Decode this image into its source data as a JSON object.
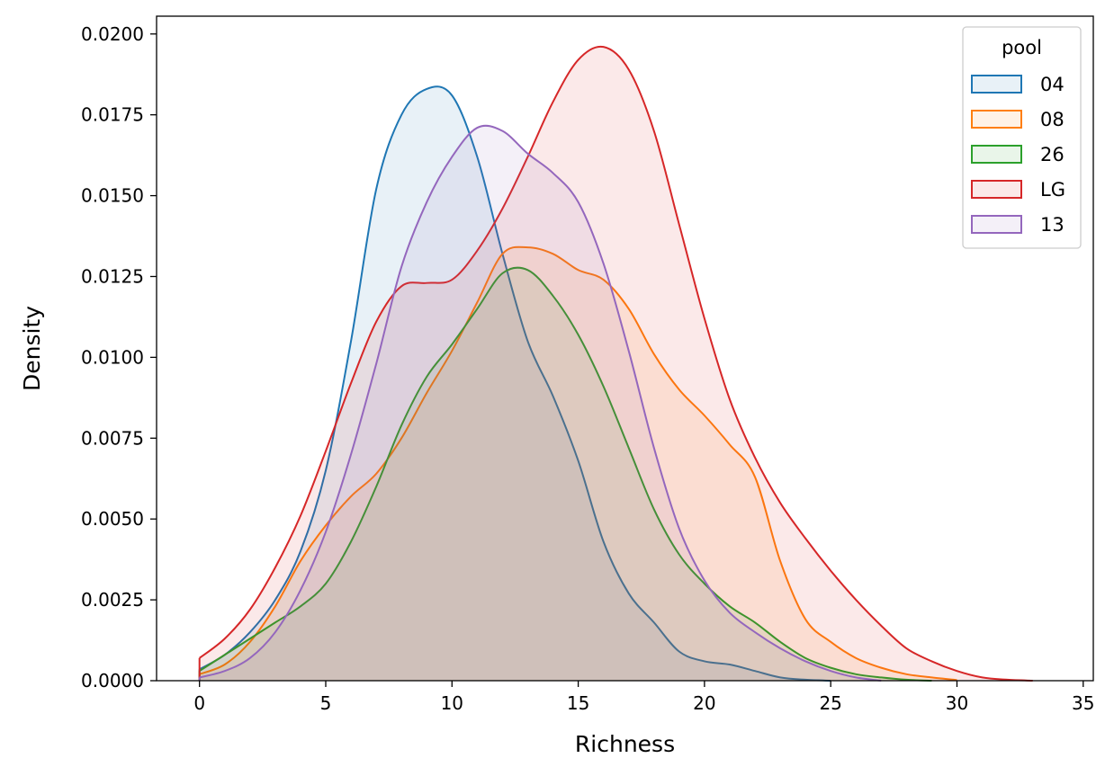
{
  "chart_data": {
    "type": "area",
    "subtype": "kde",
    "title": "",
    "xlabel": "Richness",
    "ylabel": "Density",
    "xlim": [
      -1.7,
      35.4
    ],
    "ylim": [
      0,
      0.02055
    ],
    "x_ticks": [
      0,
      5,
      10,
      15,
      20,
      25,
      30,
      35
    ],
    "y_ticks": [
      0.0,
      0.0025,
      0.005,
      0.0075,
      0.01,
      0.0125,
      0.015,
      0.0175,
      0.02
    ],
    "y_tick_labels": [
      "0.0000",
      "0.0025",
      "0.0050",
      "0.0075",
      "0.0100",
      "0.0125",
      "0.0150",
      "0.0175",
      "0.0200"
    ],
    "grid": false,
    "legend": {
      "title": "pool",
      "placement": "top-right"
    },
    "series": [
      {
        "name": "04",
        "color": "#1f77b4",
        "points": [
          [
            0,
            0.00035
          ],
          [
            1,
            0.0008
          ],
          [
            2,
            0.0015
          ],
          [
            3,
            0.0025
          ],
          [
            4,
            0.004
          ],
          [
            5,
            0.0065
          ],
          [
            6,
            0.0105
          ],
          [
            7,
            0.0152
          ],
          [
            8,
            0.0175
          ],
          [
            9,
            0.0183
          ],
          [
            10,
            0.0181
          ],
          [
            11,
            0.0162
          ],
          [
            12,
            0.0132
          ],
          [
            13,
            0.0105
          ],
          [
            14,
            0.0088
          ],
          [
            15,
            0.0068
          ],
          [
            16,
            0.0043
          ],
          [
            17,
            0.0027
          ],
          [
            18,
            0.0018
          ],
          [
            19,
            0.0009
          ],
          [
            20,
            0.0006
          ],
          [
            21,
            0.0005
          ],
          [
            22,
            0.0003
          ],
          [
            23,
            0.0001
          ],
          [
            24,
            3e-05
          ],
          [
            25,
            0.0
          ]
        ]
      },
      {
        "name": "08",
        "color": "#ff7f0e",
        "points": [
          [
            0,
            0.0002
          ],
          [
            1,
            0.0005
          ],
          [
            2,
            0.0012
          ],
          [
            3,
            0.0023
          ],
          [
            4,
            0.0037
          ],
          [
            5,
            0.0048
          ],
          [
            6,
            0.0057
          ],
          [
            7,
            0.0064
          ],
          [
            8,
            0.0075
          ],
          [
            9,
            0.0089
          ],
          [
            10,
            0.0102
          ],
          [
            11,
            0.0117
          ],
          [
            12,
            0.0132
          ],
          [
            13,
            0.0134
          ],
          [
            14,
            0.0132
          ],
          [
            15,
            0.0127
          ],
          [
            16,
            0.0124
          ],
          [
            17,
            0.0115
          ],
          [
            18,
            0.0101
          ],
          [
            19,
            0.009
          ],
          [
            20,
            0.0082
          ],
          [
            21,
            0.0073
          ],
          [
            22,
            0.0063
          ],
          [
            23,
            0.0037
          ],
          [
            24,
            0.0019
          ],
          [
            25,
            0.0012
          ],
          [
            26,
            0.0007
          ],
          [
            27,
            0.0004
          ],
          [
            28,
            0.0002
          ],
          [
            29,
            0.0001
          ],
          [
            30,
            2e-05
          ]
        ]
      },
      {
        "name": "26",
        "color": "#2ca02c",
        "points": [
          [
            0,
            0.0003
          ],
          [
            1,
            0.0008
          ],
          [
            2,
            0.0013
          ],
          [
            3,
            0.0018
          ],
          [
            4,
            0.0023
          ],
          [
            5,
            0.003
          ],
          [
            6,
            0.0043
          ],
          [
            7,
            0.006
          ],
          [
            8,
            0.0079
          ],
          [
            9,
            0.0094
          ],
          [
            10,
            0.0104
          ],
          [
            11,
            0.0115
          ],
          [
            12,
            0.0126
          ],
          [
            13,
            0.0127
          ],
          [
            14,
            0.0119
          ],
          [
            15,
            0.0107
          ],
          [
            16,
            0.0091
          ],
          [
            17,
            0.0072
          ],
          [
            18,
            0.0053
          ],
          [
            19,
            0.0039
          ],
          [
            20,
            0.003
          ],
          [
            21,
            0.0023
          ],
          [
            22,
            0.0018
          ],
          [
            23,
            0.0012
          ],
          [
            24,
            0.0007
          ],
          [
            25,
            0.0004
          ],
          [
            26,
            0.0002
          ],
          [
            27,
            0.0001
          ],
          [
            28,
            3e-05
          ],
          [
            29,
            0.0
          ]
        ]
      },
      {
        "name": "LG",
        "color": "#d62728",
        "points": [
          [
            0,
            0.0007
          ],
          [
            1,
            0.0013
          ],
          [
            2,
            0.0022
          ],
          [
            3,
            0.0035
          ],
          [
            4,
            0.0051
          ],
          [
            5,
            0.0071
          ],
          [
            6,
            0.0092
          ],
          [
            7,
            0.0111
          ],
          [
            8,
            0.0122
          ],
          [
            9,
            0.0123
          ],
          [
            10,
            0.0124
          ],
          [
            11,
            0.0133
          ],
          [
            12,
            0.0146
          ],
          [
            13,
            0.0162
          ],
          [
            14,
            0.0179
          ],
          [
            15,
            0.0192
          ],
          [
            16,
            0.0196
          ],
          [
            17,
            0.0189
          ],
          [
            18,
            0.017
          ],
          [
            19,
            0.0141
          ],
          [
            20,
            0.0112
          ],
          [
            21,
            0.0087
          ],
          [
            22,
            0.0069
          ],
          [
            23,
            0.0055
          ],
          [
            24,
            0.0044
          ],
          [
            25,
            0.0034
          ],
          [
            26,
            0.0025
          ],
          [
            27,
            0.0017
          ],
          [
            28,
            0.001
          ],
          [
            29,
            0.0006
          ],
          [
            30,
            0.0003
          ],
          [
            31,
            0.0001
          ],
          [
            32,
            3e-05
          ],
          [
            33,
            0.0
          ]
        ]
      },
      {
        "name": "13",
        "color": "#9467bd",
        "points": [
          [
            0,
            0.0001
          ],
          [
            1,
            0.0003
          ],
          [
            2,
            0.0007
          ],
          [
            3,
            0.0015
          ],
          [
            4,
            0.0028
          ],
          [
            5,
            0.0046
          ],
          [
            6,
            0.007
          ],
          [
            7,
            0.0098
          ],
          [
            8,
            0.0128
          ],
          [
            9,
            0.0148
          ],
          [
            10,
            0.0162
          ],
          [
            11,
            0.0171
          ],
          [
            12,
            0.017
          ],
          [
            13,
            0.0163
          ],
          [
            14,
            0.0157
          ],
          [
            15,
            0.0148
          ],
          [
            16,
            0.0129
          ],
          [
            17,
            0.0102
          ],
          [
            18,
            0.0072
          ],
          [
            19,
            0.0047
          ],
          [
            20,
            0.0031
          ],
          [
            21,
            0.0021
          ],
          [
            22,
            0.0015
          ],
          [
            23,
            0.001
          ],
          [
            24,
            0.0006
          ],
          [
            25,
            0.0003
          ],
          [
            26,
            0.0001
          ],
          [
            27,
            0.0
          ]
        ]
      }
    ]
  }
}
